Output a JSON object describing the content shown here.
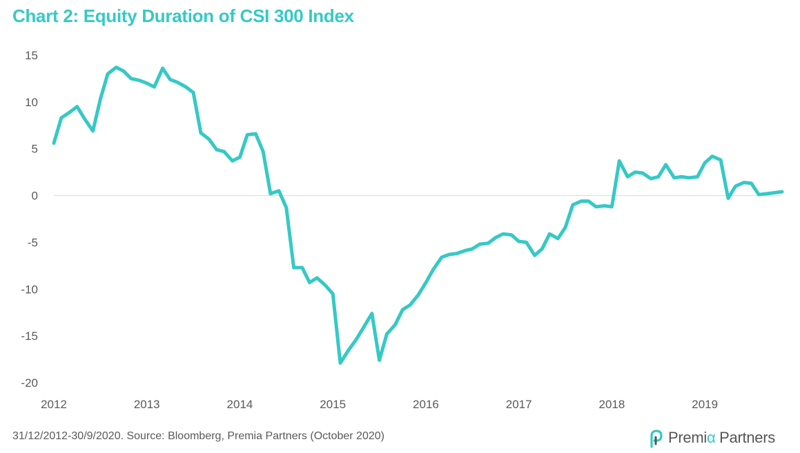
{
  "header": {
    "title": "Chart 2: Equity Duration of CSI 300 Index"
  },
  "footer": {
    "source": "31/12/2012-30/9/2020. Source: Bloomberg, Premia Partners (October 2020)"
  },
  "logo": {
    "text_part1": "Premi",
    "text_alpha": "α",
    "text_part2": " Partners",
    "icon": "premia-logo-icon"
  },
  "colors": {
    "line": "#35c9c6",
    "title": "#35c9c6",
    "zero_line": "#d9d9d9",
    "text": "#595959"
  },
  "chart_data": {
    "type": "line",
    "title": "Chart 2: Equity Duration of CSI 300 Index",
    "xlabel": "",
    "ylabel": "",
    "xlim": [
      2012.0,
      2019.83
    ],
    "ylim": [
      -20,
      15
    ],
    "x_ticks": [
      "2012",
      "2013",
      "2014",
      "2015",
      "2016",
      "2017",
      "2018",
      "2019"
    ],
    "y_ticks": [
      15,
      10,
      5,
      0,
      -5,
      -10,
      -15,
      -20
    ],
    "grid": false,
    "zero_line": true,
    "legend": "none",
    "series": [
      {
        "name": "",
        "x": [
          2012.0,
          2012.08,
          2012.17,
          2012.25,
          2012.33,
          2012.42,
          2012.5,
          2012.58,
          2012.67,
          2012.75,
          2012.83,
          2012.92,
          2013.0,
          2013.08,
          2013.17,
          2013.25,
          2013.33,
          2013.42,
          2013.5,
          2013.58,
          2013.67,
          2013.75,
          2013.83,
          2013.92,
          2014.0,
          2014.08,
          2014.17,
          2014.25,
          2014.33,
          2014.42,
          2014.5,
          2014.58,
          2014.67,
          2014.75,
          2014.83,
          2014.92,
          2015.0,
          2015.08,
          2015.17,
          2015.25,
          2015.33,
          2015.42,
          2015.5,
          2015.58,
          2015.67,
          2015.75,
          2015.83,
          2015.92,
          2016.0,
          2016.08,
          2016.17,
          2016.25,
          2016.33,
          2016.42,
          2016.5,
          2016.58,
          2016.67,
          2016.75,
          2016.83,
          2016.92,
          2017.0,
          2017.08,
          2017.17,
          2017.25,
          2017.33,
          2017.42,
          2017.5,
          2017.58,
          2017.67,
          2017.75,
          2017.83,
          2017.92,
          2018.0,
          2018.08,
          2018.17,
          2018.25,
          2018.33,
          2018.42,
          2018.5,
          2018.58,
          2018.67,
          2018.75,
          2018.83,
          2018.92,
          2019.0,
          2019.08,
          2019.17,
          2019.25,
          2019.33,
          2019.42,
          2019.5,
          2019.58,
          2019.67,
          2019.75,
          2019.83
        ],
        "y": [
          5.6,
          8.3,
          8.9,
          9.5,
          8.2,
          6.9,
          10.3,
          13.0,
          13.7,
          13.3,
          12.5,
          12.3,
          12.0,
          11.6,
          13.6,
          12.4,
          12.1,
          11.6,
          11.0,
          6.7,
          6.0,
          4.9,
          4.7,
          3.7,
          4.1,
          6.5,
          6.6,
          4.7,
          0.2,
          0.5,
          -1.3,
          -7.7,
          -7.7,
          -9.3,
          -8.8,
          -9.6,
          -10.5,
          -17.9,
          -16.5,
          -15.4,
          -14.1,
          -12.6,
          -17.6,
          -14.8,
          -13.8,
          -12.2,
          -11.7,
          -10.6,
          -9.3,
          -7.9,
          -6.6,
          -6.3,
          -6.2,
          -5.9,
          -5.7,
          -5.2,
          -5.1,
          -4.5,
          -4.1,
          -4.2,
          -4.9,
          -5.0,
          -6.4,
          -5.7,
          -4.1,
          -4.6,
          -3.4,
          -1.0,
          -0.6,
          -0.6,
          -1.2,
          -1.1,
          -1.2,
          3.7,
          2.0,
          2.5,
          2.4,
          1.8,
          2.0,
          3.3,
          1.9,
          2.0,
          1.9,
          2.0,
          3.5,
          4.2,
          3.8,
          -0.3,
          1.0,
          1.4,
          1.3,
          0.1,
          0.2,
          0.3,
          0.4
        ]
      }
    ]
  }
}
